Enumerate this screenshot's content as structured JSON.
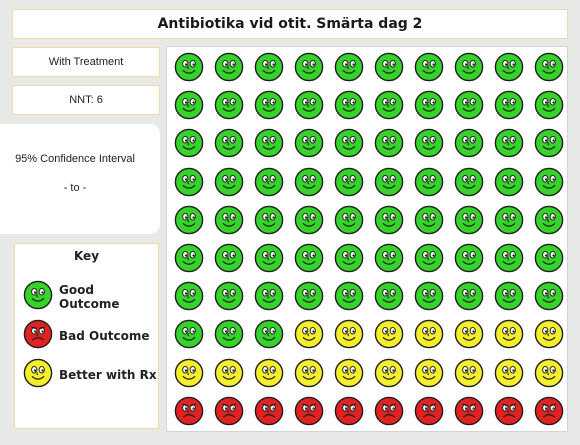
{
  "title": "Antibiotika vid otit. Smärta dag 2",
  "treatment_label": "With Treatment",
  "nnt_label": "NNT: 6",
  "confidence_interval": {
    "label": "95% Confidence Interval",
    "range_text": "- to -"
  },
  "key": {
    "title": "Key",
    "items": [
      {
        "label": "Good Outcome",
        "outcome": "good"
      },
      {
        "label": "Bad Outcome",
        "outcome": "bad"
      },
      {
        "label": "Better with Rx",
        "outcome": "better"
      }
    ]
  },
  "grid": {
    "columns": 10,
    "rows": 10,
    "cells": [
      "good",
      "good",
      "good",
      "good",
      "good",
      "good",
      "good",
      "good",
      "good",
      "good",
      "good",
      "good",
      "good",
      "good",
      "good",
      "good",
      "good",
      "good",
      "good",
      "good",
      "good",
      "good",
      "good",
      "good",
      "good",
      "good",
      "good",
      "good",
      "good",
      "good",
      "good",
      "good",
      "good",
      "good",
      "good",
      "good",
      "good",
      "good",
      "good",
      "good",
      "good",
      "good",
      "good",
      "good",
      "good",
      "good",
      "good",
      "good",
      "good",
      "good",
      "good",
      "good",
      "good",
      "good",
      "good",
      "good",
      "good",
      "good",
      "good",
      "good",
      "good",
      "good",
      "good",
      "good",
      "good",
      "good",
      "good",
      "good",
      "good",
      "good",
      "good",
      "good",
      "good",
      "better",
      "better",
      "better",
      "better",
      "better",
      "better",
      "better",
      "better",
      "better",
      "better",
      "better",
      "better",
      "better",
      "better",
      "better",
      "better",
      "better",
      "bad",
      "bad",
      "bad",
      "bad",
      "bad",
      "bad",
      "bad",
      "bad",
      "bad",
      "bad"
    ]
  },
  "colors": {
    "good": "#36d42a",
    "bad": "#e02222",
    "better": "#f5ee2a",
    "outline": "#1f1f1f"
  }
}
